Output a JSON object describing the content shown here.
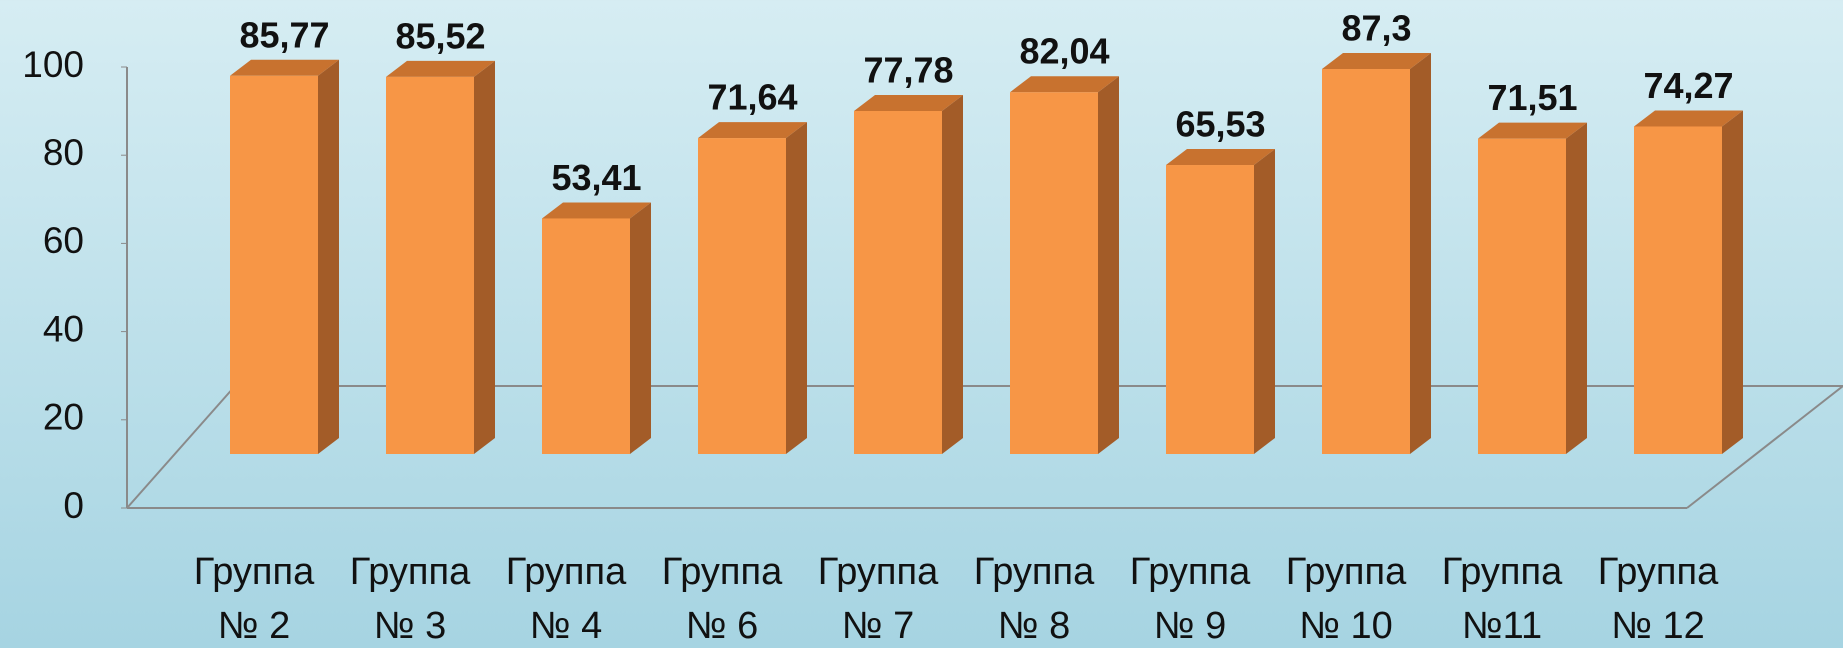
{
  "chart_data": {
    "type": "bar3d",
    "categories": [
      "Группа № 2",
      "Группа № 3",
      "Группа № 4",
      "Группа № 6",
      "Группа № 7",
      "Группа № 8",
      "Группа № 9",
      "Группа № 10",
      "Группа №11",
      "Группа № 12"
    ],
    "values": [
      85.77,
      85.52,
      53.41,
      71.64,
      77.78,
      82.04,
      65.53,
      87.3,
      71.51,
      74.27
    ],
    "value_labels": [
      "85,77",
      "85,52",
      "53,41",
      "71,64",
      "77,78",
      "82,04",
      "65,53",
      "87,3",
      "71,51",
      "74,27"
    ],
    "color": "#f79646",
    "ylim": [
      0,
      100
    ],
    "yticks": [
      0,
      20,
      40,
      60,
      80,
      100
    ]
  }
}
